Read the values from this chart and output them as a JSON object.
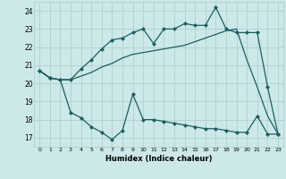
{
  "xlabel": "Humidex (Indice chaleur)",
  "bg_color": "#cce8e8",
  "grid_color": "#aacccc",
  "line_color": "#1a6060",
  "xlim": [
    -0.5,
    23.5
  ],
  "ylim": [
    16.5,
    24.5
  ],
  "yticks": [
    17,
    18,
    19,
    20,
    21,
    22,
    23,
    24
  ],
  "xticks": [
    0,
    1,
    2,
    3,
    4,
    5,
    6,
    7,
    8,
    9,
    10,
    11,
    12,
    13,
    14,
    15,
    16,
    17,
    18,
    19,
    20,
    21,
    22,
    23
  ],
  "series1_x": [
    0,
    1,
    2,
    3,
    4,
    5,
    6,
    7,
    8,
    9,
    10,
    11,
    12,
    13,
    14,
    15,
    16,
    17,
    18,
    19,
    20,
    21,
    22,
    23
  ],
  "series1_y": [
    20.7,
    20.3,
    20.2,
    20.2,
    20.4,
    20.6,
    20.9,
    21.1,
    21.4,
    21.6,
    21.7,
    21.8,
    21.9,
    22.0,
    22.1,
    22.3,
    22.5,
    22.7,
    22.9,
    23.0,
    21.3,
    19.8,
    18.2,
    17.2
  ],
  "series2_x": [
    0,
    1,
    2,
    3,
    4,
    5,
    6,
    7,
    8,
    9,
    10,
    11,
    12,
    13,
    14,
    15,
    16,
    17,
    18,
    19,
    20,
    21,
    22,
    23
  ],
  "series2_y": [
    20.7,
    20.3,
    20.2,
    20.2,
    20.8,
    21.3,
    21.9,
    22.4,
    22.5,
    22.8,
    23.0,
    22.2,
    23.0,
    23.0,
    23.3,
    23.2,
    23.2,
    24.2,
    23.0,
    22.8,
    22.8,
    22.8,
    19.8,
    17.2
  ],
  "series3_x": [
    0,
    1,
    2,
    3,
    4,
    5,
    6,
    7,
    8,
    9,
    10,
    11,
    12,
    13,
    14,
    15,
    16,
    17,
    18,
    19,
    20,
    21,
    22,
    23
  ],
  "series3_y": [
    20.7,
    20.3,
    20.2,
    18.4,
    18.1,
    17.6,
    17.3,
    16.9,
    17.4,
    19.4,
    18.0,
    18.0,
    17.9,
    17.8,
    17.7,
    17.6,
    17.5,
    17.5,
    17.4,
    17.3,
    17.3,
    18.2,
    17.2,
    17.2
  ]
}
